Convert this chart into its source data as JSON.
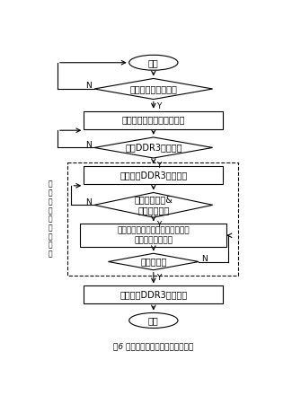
{
  "title": "图6 视频处理写请求中断处理流程图",
  "start_text": "开始",
  "end_text": "结束",
  "d1_text": "视频处理写请求有效",
  "r1_text": "生成视频处理写子中断请求",
  "d2_text": "视频DDR3总线空闲",
  "r2_text": "视频存储DDR3总线占用",
  "d3_text": "命令接收就绪&\n数据接收就绪",
  "r3_text": "发布读命令，从视频处理缓存区取\n出地址和数据发送",
  "d4_text": "缓存区为空",
  "r4_text": "视频存储DDR3总线释放",
  "side_label": "发\n送\n写\n命\n令\n和\n写\n数\n据",
  "N": "N",
  "Y": "Y",
  "fig_width": 3.25,
  "fig_height": 4.4,
  "dpi": 100,
  "font_size": 7.0,
  "lw": 0.8
}
